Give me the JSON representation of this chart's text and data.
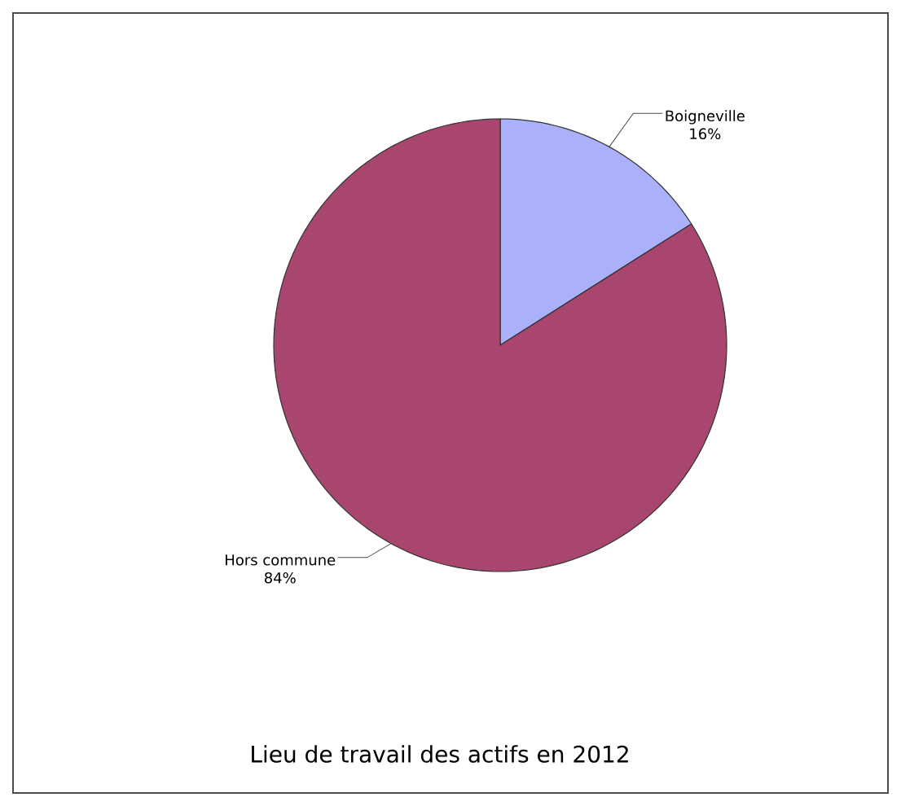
{
  "chart_data": {
    "type": "pie",
    "title": "Lieu de travail des actifs en 2012",
    "categories": [
      "Boigneville",
      "Hors commune"
    ],
    "values": [
      16,
      84
    ],
    "colors": [
      "#aab0fa",
      "#a8466f"
    ],
    "value_labels": [
      "16%",
      "84%"
    ]
  }
}
